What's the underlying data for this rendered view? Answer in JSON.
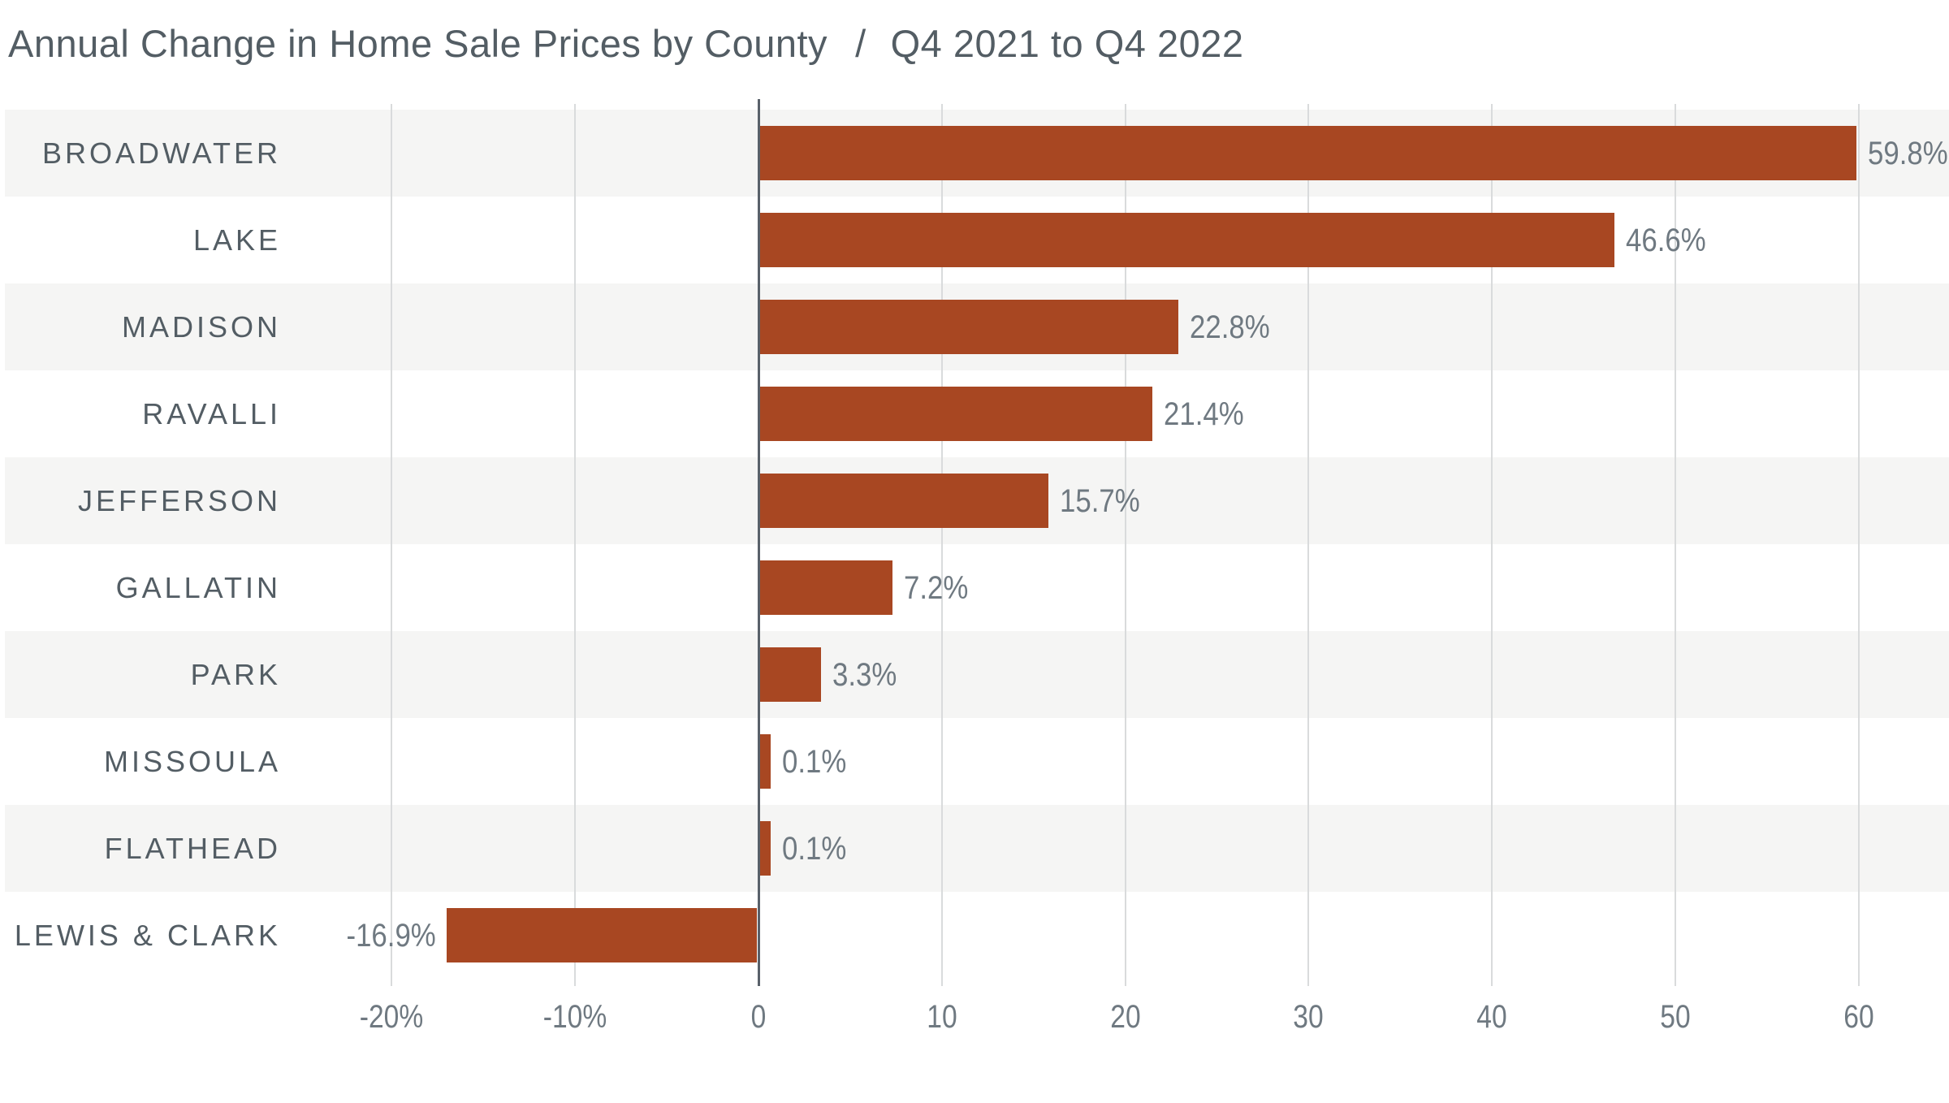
{
  "header": {
    "title_main": "Annual Change in Home Sale Prices by County",
    "title_separator": "/",
    "title_period": "Q4 2021 to Q4 2022"
  },
  "chart_data": {
    "type": "bar",
    "orientation": "horizontal",
    "title": "Annual Change in Home Sale Prices by County / Q4 2021 to Q4 2022",
    "xlabel": "",
    "ylabel": "",
    "unit": "%",
    "categories": [
      "BROADWATER",
      "LAKE",
      "MADISON",
      "RAVALLI",
      "JEFFERSON",
      "GALLATIN",
      "PARK",
      "MISSOULA",
      "FLATHEAD",
      "LEWIS & CLARK"
    ],
    "values": [
      59.8,
      46.6,
      22.8,
      21.4,
      15.7,
      7.2,
      3.3,
      0.1,
      0.1,
      -16.9
    ],
    "value_labels": [
      "59.8%",
      "46.6%",
      "22.8%",
      "21.4%",
      "15.7%",
      "7.2%",
      "3.3%",
      "0.1%",
      "0.1%",
      "-16.9%"
    ],
    "x_tick_values": [
      -20,
      -10,
      0,
      10,
      20,
      30,
      40,
      50,
      60
    ],
    "x_tick_labels": [
      "-20%",
      "-10%",
      "0",
      "10",
      "20",
      "30",
      "40",
      "50",
      "60"
    ],
    "xlim": [
      -20,
      60
    ],
    "grid": true,
    "legend": false,
    "row_striping": true,
    "colors": {
      "bar": "#a84722",
      "band": "#f5f5f4",
      "background": "#ffffff",
      "gridline": "#d9dbdc",
      "axis_line": "#59616a",
      "title_text": "#535d64",
      "category_text": "#535d64",
      "value_text": "#6f7981",
      "tick_text": "#6f7981"
    }
  }
}
